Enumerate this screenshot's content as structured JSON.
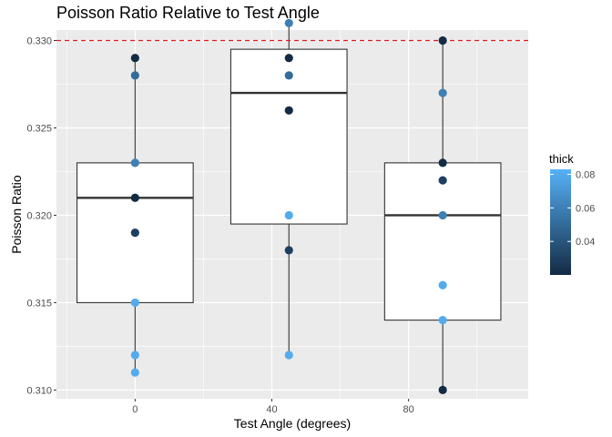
{
  "chart_data": {
    "type": "boxplot",
    "title": "Poisson Ratio Relative to Test Angle",
    "xlabel": "Test Angle (degrees)",
    "ylabel": "Poisson Ratio",
    "xlim": [
      -23,
      115
    ],
    "ylim": [
      0.3095,
      0.3306
    ],
    "x_ticks": [
      0,
      40,
      80
    ],
    "x_minor": [
      -20,
      20,
      60,
      100
    ],
    "y_ticks": [
      0.31,
      0.315,
      0.32,
      0.325,
      0.33
    ],
    "y_tick_labels": [
      "0.310",
      "0.315",
      "0.320",
      "0.325",
      "0.330"
    ],
    "grid": true,
    "reference_line": {
      "y": 0.33,
      "color": "#e41a1c",
      "style": "dashed"
    },
    "box_half_width": 17,
    "boxes": [
      {
        "x": 0,
        "q1": 0.315,
        "median": 0.321,
        "q3": 0.323,
        "whisker_low": 0.311,
        "whisker_high": 0.329
      },
      {
        "x": 45,
        "q1": 0.3195,
        "median": 0.327,
        "q3": 0.3295,
        "whisker_low": 0.312,
        "whisker_high": 0.331
      },
      {
        "x": 90,
        "q1": 0.314,
        "median": 0.32,
        "q3": 0.323,
        "whisker_low": 0.31,
        "whisker_high": 0.33
      }
    ],
    "points": [
      {
        "x": 0,
        "y": 0.329,
        "thick": 0.02
      },
      {
        "x": 0,
        "y": 0.328,
        "thick": 0.05
      },
      {
        "x": 0,
        "y": 0.323,
        "thick": 0.06
      },
      {
        "x": 0,
        "y": 0.321,
        "thick": 0.02
      },
      {
        "x": 0,
        "y": 0.319,
        "thick": 0.03
      },
      {
        "x": 0,
        "y": 0.315,
        "thick": 0.08
      },
      {
        "x": 0,
        "y": 0.312,
        "thick": 0.08
      },
      {
        "x": 0,
        "y": 0.311,
        "thick": 0.08
      },
      {
        "x": 45,
        "y": 0.331,
        "thick": 0.06
      },
      {
        "x": 45,
        "y": 0.329,
        "thick": 0.02
      },
      {
        "x": 45,
        "y": 0.328,
        "thick": 0.05
      },
      {
        "x": 45,
        "y": 0.326,
        "thick": 0.02
      },
      {
        "x": 45,
        "y": 0.32,
        "thick": 0.08
      },
      {
        "x": 45,
        "y": 0.318,
        "thick": 0.03
      },
      {
        "x": 45,
        "y": 0.312,
        "thick": 0.08
      },
      {
        "x": 90,
        "y": 0.33,
        "thick": 0.02
      },
      {
        "x": 90,
        "y": 0.327,
        "thick": 0.06
      },
      {
        "x": 90,
        "y": 0.323,
        "thick": 0.02
      },
      {
        "x": 90,
        "y": 0.322,
        "thick": 0.03
      },
      {
        "x": 90,
        "y": 0.32,
        "thick": 0.06
      },
      {
        "x": 90,
        "y": 0.316,
        "thick": 0.08
      },
      {
        "x": 90,
        "y": 0.314,
        "thick": 0.08
      },
      {
        "x": 90,
        "y": 0.31,
        "thick": 0.02
      }
    ],
    "legend": {
      "title": "thick",
      "position": "right",
      "range": [
        0.02,
        0.083
      ],
      "ticks": [
        0.04,
        0.06,
        0.08
      ],
      "tick_labels": [
        "0.04",
        "0.06",
        "0.08"
      ],
      "color_low": "#132b43",
      "color_high": "#56b1f7"
    }
  }
}
